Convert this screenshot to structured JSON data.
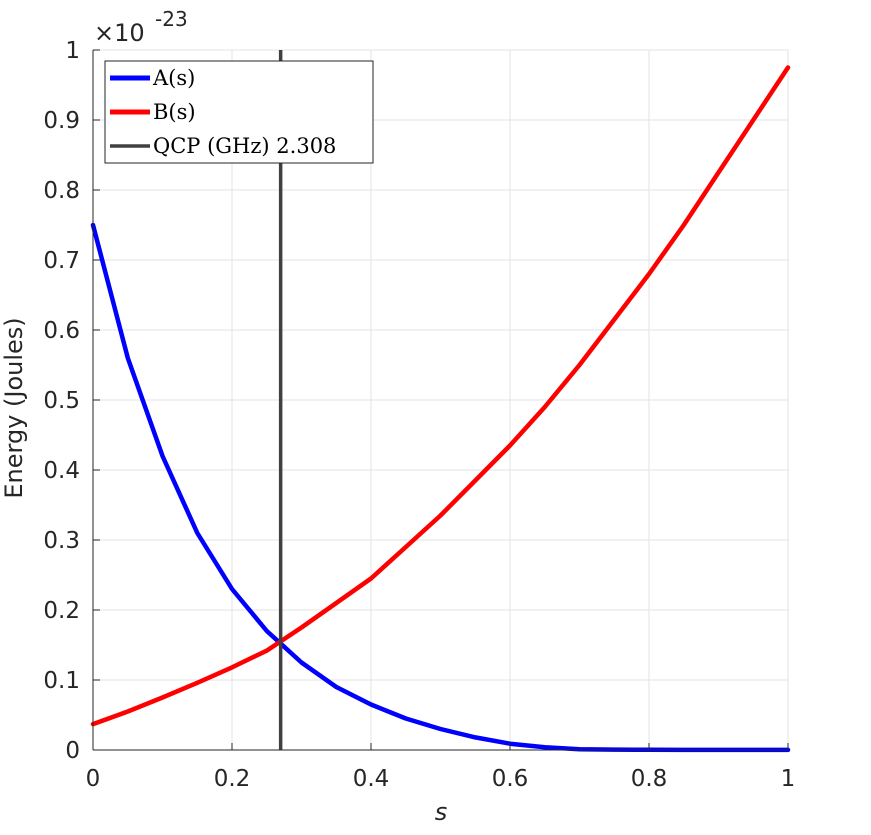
{
  "chart_data": {
    "type": "line",
    "xlabel": "s",
    "ylabel": "Energy (Joules)",
    "exponent": {
      "base_text": "×10",
      "power_text": "-23"
    },
    "xlim": [
      0,
      1
    ],
    "ylim": [
      0,
      1
    ],
    "x_ticks": [
      0,
      0.2,
      0.4,
      0.6,
      0.8,
      1
    ],
    "x_tick_labels": [
      "0",
      "0.2",
      "0.4",
      "0.6",
      "0.8",
      "1"
    ],
    "y_ticks": [
      0,
      0.1,
      0.2,
      0.3,
      0.4,
      0.5,
      0.6,
      0.7,
      0.8,
      0.9,
      1
    ],
    "y_tick_labels": [
      "0",
      "0.1",
      "0.2",
      "0.3",
      "0.4",
      "0.5",
      "0.6",
      "0.7",
      "0.8",
      "0.9",
      "1"
    ],
    "grid": true,
    "legend_position": "top-left",
    "x": [
      0,
      0.05,
      0.1,
      0.15,
      0.2,
      0.25,
      0.3,
      0.35,
      0.4,
      0.45,
      0.5,
      0.55,
      0.6,
      0.65,
      0.7,
      0.75,
      0.8,
      0.85,
      0.9,
      0.95,
      1
    ],
    "series": [
      {
        "name": "A(s)",
        "color": "#0000ff",
        "values": [
          0.75,
          0.56,
          0.42,
          0.31,
          0.23,
          0.17,
          0.125,
          0.09,
          0.065,
          0.045,
          0.03,
          0.018,
          0.009,
          0.004,
          0.001,
          0.0005,
          0.0003,
          0.0002,
          0.0001,
          0.0001,
          0.0001
        ]
      },
      {
        "name": "B(s)",
        "color": "#ff0000",
        "values": [
          0.037,
          0.055,
          0.075,
          0.096,
          0.118,
          0.142,
          0.175,
          0.21,
          0.245,
          0.29,
          0.335,
          0.385,
          0.435,
          0.49,
          0.55,
          0.615,
          0.68,
          0.75,
          0.825,
          0.9,
          0.975
        ]
      }
    ],
    "vertical_line": {
      "name": "QCP (GHz) 2.308",
      "x": 0.27,
      "color": "#404040"
    }
  }
}
